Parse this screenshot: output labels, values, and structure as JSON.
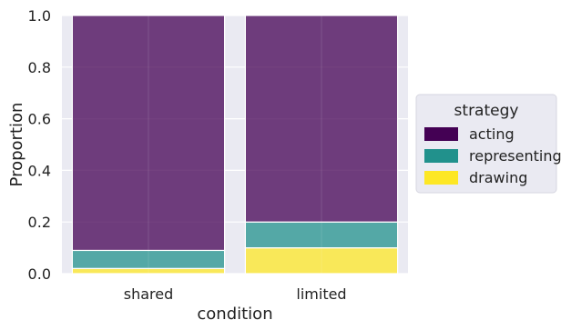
{
  "chart_data": {
    "type": "bar",
    "stacked": true,
    "normalized": true,
    "categories": [
      "shared",
      "limited"
    ],
    "xlabel": "condition",
    "ylabel": "Proportion",
    "ylim": [
      0,
      1
    ],
    "yticks": [
      "0.0",
      "0.2",
      "0.4",
      "0.6",
      "0.8",
      "1.0"
    ],
    "grid": true,
    "legend": {
      "title": "strategy",
      "placement": "right"
    },
    "series": [
      {
        "name": "drawing",
        "color": "#fde725",
        "values": [
          0.02,
          0.1
        ]
      },
      {
        "name": "representing",
        "color": "#21918c",
        "values": [
          0.07,
          0.1
        ]
      },
      {
        "name": "acting",
        "color": "#440154",
        "values": [
          0.91,
          0.8
        ]
      }
    ],
    "legend_order": [
      "acting",
      "representing",
      "drawing"
    ]
  }
}
